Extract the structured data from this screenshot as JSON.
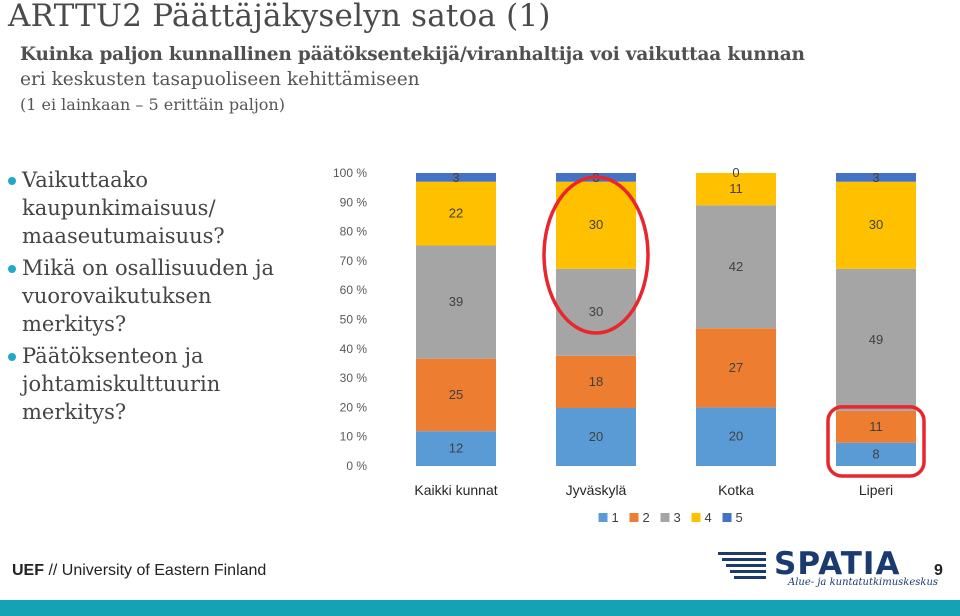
{
  "slide": {
    "title": "ARTTU2 Päättäjäkyselyn satoa (1)",
    "subtitle_line1": "Kuinka paljon kunnallinen päätöksentekijä/viranhaltija voi vaikuttaa kunnan",
    "subtitle_line2": "eri keskusten tasapuoliseen kehittämiseen",
    "subtitle_line3": "(1 ei lainkaan – 5 erittäin paljon)",
    "bullets": [
      "Vaikuttaako kaupunkimaisuus/ maaseutumaisuus?",
      "Mikä on osallisuuden ja vuorovaikutuksen merkitys?",
      "Päätöksenteon ja johtamiskulttuurin merkitys?"
    ],
    "bullet_color": "#21a9c7",
    "footer_uef": "UEF",
    "footer_rest": " // University of Eastern Finland",
    "logo_text": "SPATIA",
    "logo_subtext": "Alue- ja kuntatutkimuskeskus",
    "logo_color": "#1a3a70",
    "page_number": "9",
    "bottom_bar_color": "#13a3b5"
  },
  "chart_data": {
    "type": "bar",
    "stacked": true,
    "percent_stacked": true,
    "categories": [
      "Kaikki kunnat",
      "Jyväskylä",
      "Kotka",
      "Liperi"
    ],
    "series": [
      {
        "name": "1",
        "color": "#5b9bd5",
        "values": [
          12,
          20,
          20,
          8
        ]
      },
      {
        "name": "2",
        "color": "#ed7d31",
        "values": [
          25,
          18,
          27,
          11
        ]
      },
      {
        "name": "3",
        "color": "#a5a5a5",
        "values": [
          39,
          30,
          42,
          49
        ]
      },
      {
        "name": "4",
        "color": "#ffc000",
        "values": [
          22,
          30,
          11,
          30
        ]
      },
      {
        "name": "5",
        "color": "#4472c4",
        "values": [
          3,
          3,
          0,
          3
        ]
      }
    ],
    "y_ticks": [
      "0 %",
      "10 %",
      "20 %",
      "30 %",
      "40 %",
      "50 %",
      "60 %",
      "70 %",
      "80 %",
      "90 %",
      "100 %"
    ],
    "ylim": [
      0,
      100
    ],
    "legend_position": "bottom",
    "grid": false,
    "highlights": [
      {
        "category": "Jyväskylä",
        "shape": "ellipse",
        "color": "#e8262c"
      },
      {
        "category": "Liperi",
        "shape": "rounded-rect",
        "series_range": [
          "1",
          "2"
        ],
        "color": "#e8262c"
      }
    ]
  }
}
